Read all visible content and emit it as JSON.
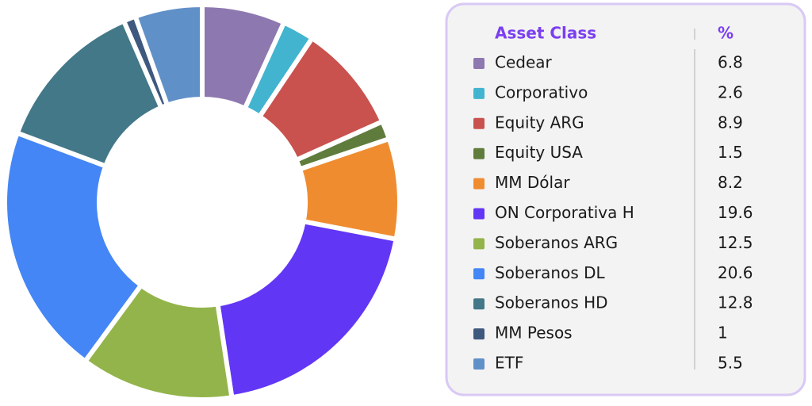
{
  "chart_data": {
    "type": "donut",
    "legend_header": {
      "label": "Asset Class",
      "value": "%"
    },
    "categories": [
      "Cedear",
      "Corporativo",
      "Equity ARG",
      "Equity USA",
      "MM Dólar",
      "ON Corporativa H",
      "Soberanos ARG",
      "Soberanos DL",
      "Soberanos HD",
      "MM Pesos",
      "ETF"
    ],
    "values": [
      6.8,
      2.6,
      8.9,
      1.5,
      8.2,
      19.6,
      12.5,
      20.6,
      12.8,
      1,
      5.5
    ],
    "colors": [
      "#8e78b0",
      "#42b4cf",
      "#c9524e",
      "#5f7c3c",
      "#f08c30",
      "#6236f5",
      "#93b44a",
      "#4486f5",
      "#437888",
      "#3f587e",
      "#6090c8"
    ]
  }
}
